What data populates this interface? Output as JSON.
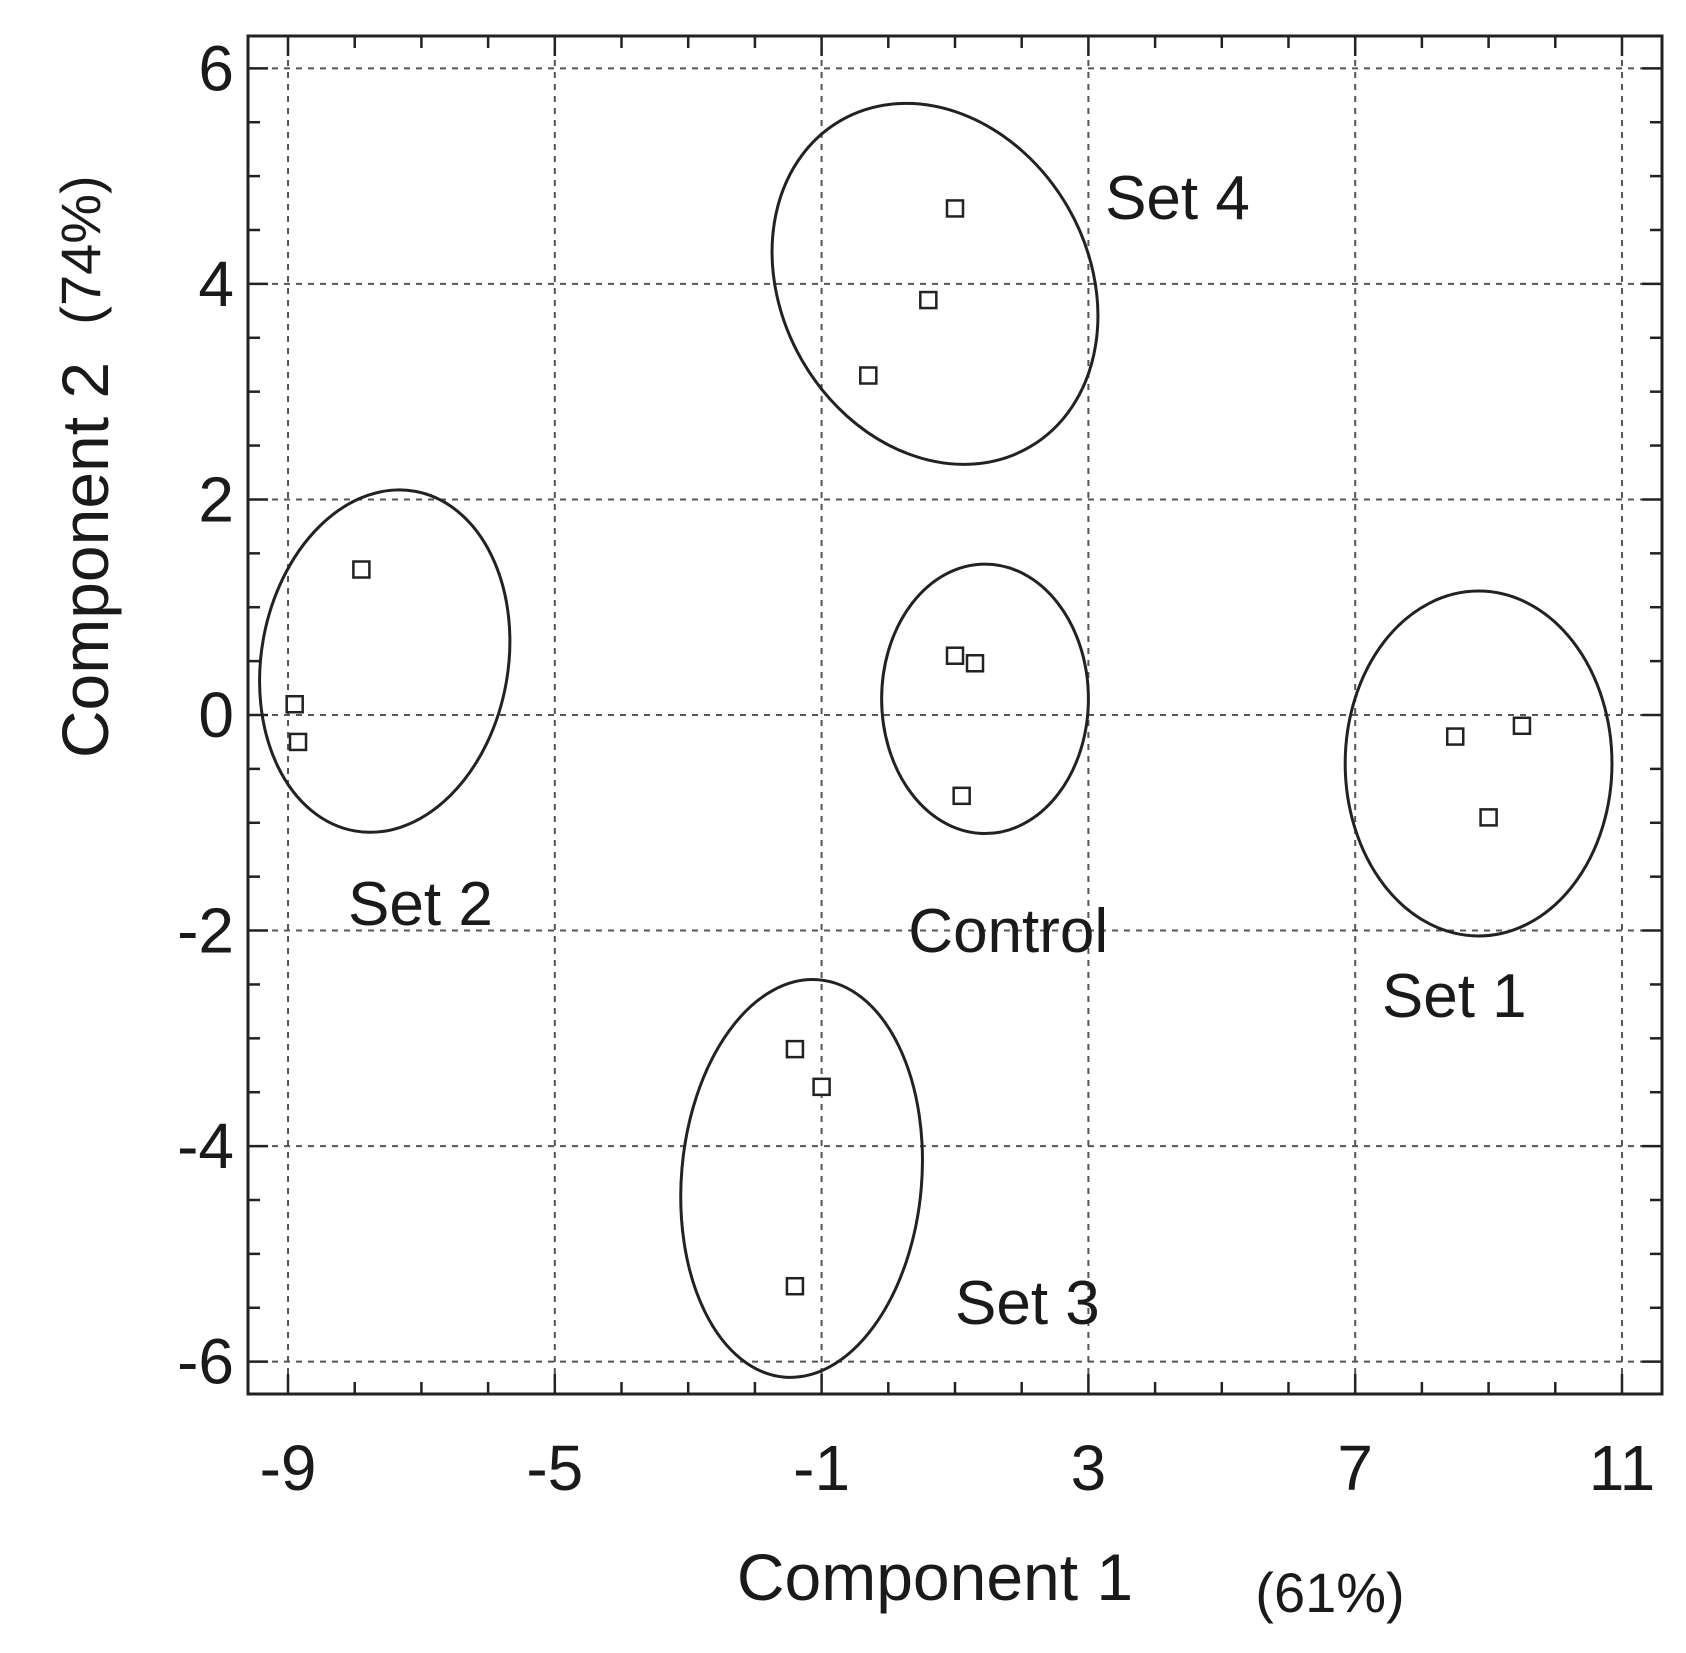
{
  "chart_data": {
    "type": "scatter",
    "xlabel": "Component 1",
    "xlabel_pct": "(61%)",
    "ylabel": "Component 2",
    "ylabel_pct": "(74%)",
    "xlim": [
      -9.6,
      11.6
    ],
    "ylim": [
      -6.3,
      6.3
    ],
    "x_ticks": [
      -9,
      -5,
      -1,
      3,
      7,
      11
    ],
    "x_tick_labels": [
      "-9",
      "-5",
      "-1",
      "3",
      "7",
      "11"
    ],
    "y_ticks": [
      6,
      4,
      2,
      0,
      -2,
      -4,
      -6
    ],
    "y_tick_labels": [
      "6",
      "4",
      "2",
      "0",
      "-2",
      "-4",
      "-6"
    ],
    "grid": true,
    "groups": [
      {
        "name": "Set4",
        "points": [
          {
            "x": 1.0,
            "y": 4.7
          },
          {
            "x": 0.6,
            "y": 3.85
          },
          {
            "x": -0.3,
            "y": 3.15
          }
        ],
        "ellipse": {
          "cx": 0.7,
          "cy": 4.0,
          "rx": 2.3,
          "ry": 1.75,
          "rotation_deg": -30
        },
        "label": "Set 4"
      },
      {
        "name": "Set2",
        "points": [
          {
            "x": -7.9,
            "y": 1.35
          },
          {
            "x": -8.9,
            "y": 0.1
          },
          {
            "x": -8.85,
            "y": -0.25
          }
        ],
        "ellipse": {
          "cx": -7.55,
          "cy": 0.5,
          "rx": 1.85,
          "ry": 1.6,
          "rotation_deg": 10
        },
        "label": "Set 2"
      },
      {
        "name": "Control",
        "points": [
          {
            "x": 1.0,
            "y": 0.55
          },
          {
            "x": 1.3,
            "y": 0.48
          },
          {
            "x": 1.1,
            "y": -0.75
          }
        ],
        "ellipse": {
          "cx": 1.45,
          "cy": 0.15,
          "rx": 1.55,
          "ry": 1.25,
          "rotation_deg": 0
        },
        "label": "Control"
      },
      {
        "name": "Set1",
        "points": [
          {
            "x": 8.5,
            "y": -0.2
          },
          {
            "x": 9.5,
            "y": -0.1
          },
          {
            "x": 9.0,
            "y": -0.95
          }
        ],
        "ellipse": {
          "cx": 8.85,
          "cy": -0.45,
          "rx": 2.0,
          "ry": 1.6,
          "rotation_deg": 0
        },
        "label": "Set 1"
      },
      {
        "name": "Set3",
        "points": [
          {
            "x": -1.4,
            "y": -3.1
          },
          {
            "x": -1.0,
            "y": -3.45
          },
          {
            "x": -1.4,
            "y": -5.3
          }
        ],
        "ellipse": {
          "cx": -1.3,
          "cy": -4.3,
          "rx": 1.8,
          "ry": 1.85,
          "rotation_deg": 5
        },
        "label": "Set 3"
      }
    ]
  }
}
